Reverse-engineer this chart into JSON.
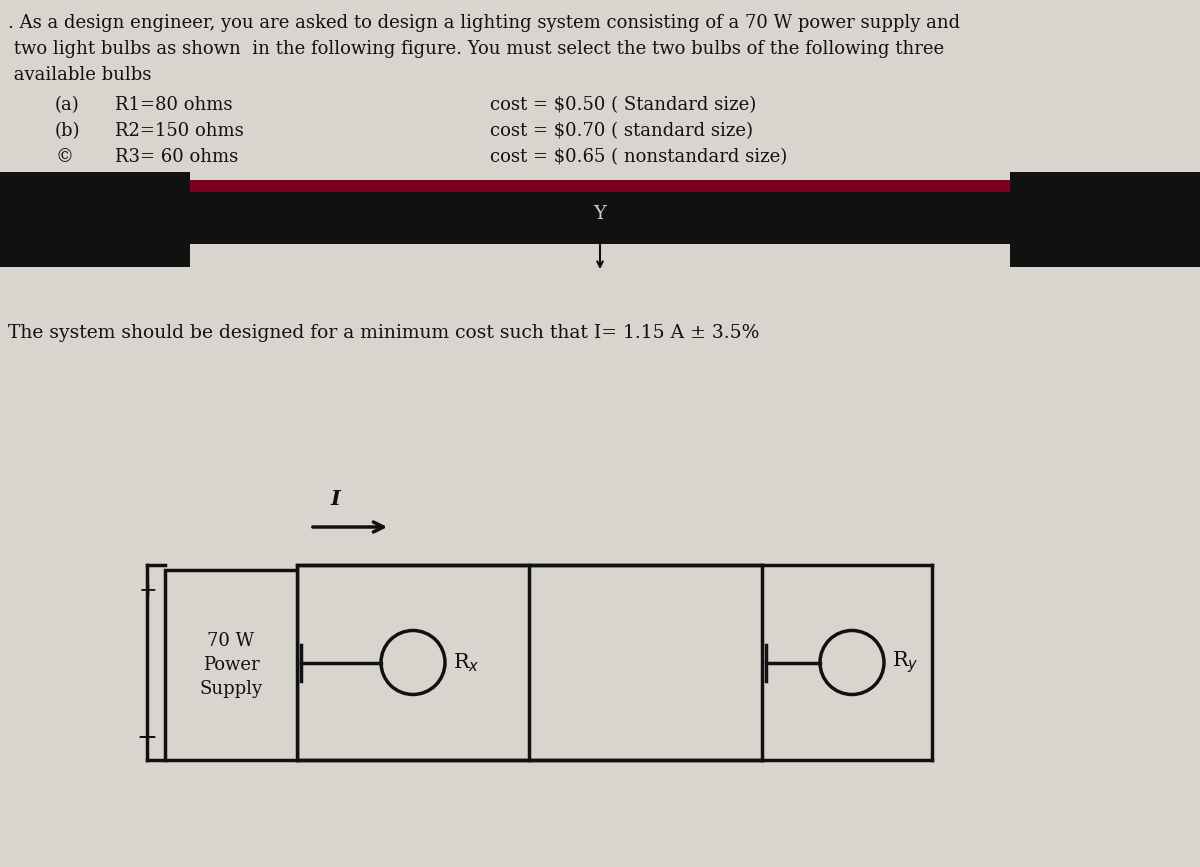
{
  "bg_color": "#d8d4ce",
  "text_color": "#111111",
  "top_text_lines": [
    ". As a design engineer, you are asked to design a lighting system consisting of a 70 W power supply and",
    " two light bulbs as shown  in the following figure. You must select the two bulbs of the following three",
    " available bulbs"
  ],
  "bulbs": [
    {
      "label": "(a)",
      "res": "R1=80 ohms",
      "cost": "cost = $0.50 ( Standard size)"
    },
    {
      "label": "(b)",
      "res": "R2=150 ohms",
      "cost": "cost = $0.70 ( standard size)"
    },
    {
      "label": "©",
      "res": "R3= 60 ohms",
      "cost": "cost = $0.65 ( nonstandard size)"
    }
  ],
  "divider_color": "#7a0020",
  "dark_bar_color": "#111111",
  "middle_text": "The system should be designed for a minimum cost such that I= 1.15 A ± 3.5%",
  "circuit_power_label": "70 W\nPower\nSupply",
  "plus_sign": "+",
  "minus_sign": "−",
  "font_family": "DejaVu Serif",
  "label_color": "#222222"
}
